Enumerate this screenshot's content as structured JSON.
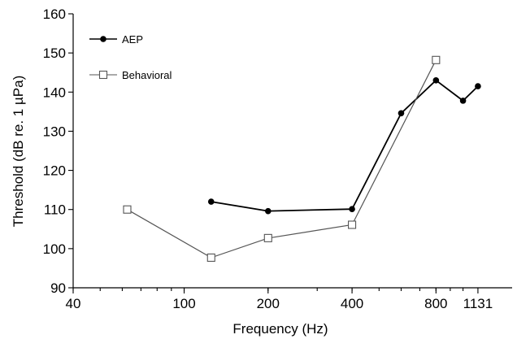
{
  "chart_data": {
    "type": "line",
    "xlabel": "Frequency (Hz)",
    "ylabel": "Threshold (dB re. 1 µPa)",
    "xscale": "log",
    "xlim": [
      40,
      1500
    ],
    "ylim": [
      90,
      160
    ],
    "yticks": [
      90,
      100,
      110,
      120,
      130,
      140,
      150,
      160
    ],
    "xtick_labels": [
      {
        "value": 40,
        "label": "40"
      },
      {
        "value": 100,
        "label": "100"
      },
      {
        "value": 200,
        "label": "200"
      },
      {
        "value": 400,
        "label": "400"
      },
      {
        "value": 800,
        "label": "800"
      },
      {
        "value": 1131,
        "label": "1131"
      }
    ],
    "legend_position": "top-left",
    "series": [
      {
        "name": "AEP",
        "marker": "filled-circle",
        "color": "#000000",
        "points": [
          {
            "x": 125,
            "y": 112
          },
          {
            "x": 200,
            "y": 109.6
          },
          {
            "x": 400,
            "y": 110.1
          },
          {
            "x": 600,
            "y": 134.6
          },
          {
            "x": 800,
            "y": 143
          },
          {
            "x": 1000,
            "y": 137.8
          },
          {
            "x": 1131,
            "y": 141.5
          }
        ]
      },
      {
        "name": "Behavioral",
        "marker": "open-square",
        "color": "#555555",
        "points": [
          {
            "x": 62.5,
            "y": 110
          },
          {
            "x": 125,
            "y": 97.7
          },
          {
            "x": 200,
            "y": 102.7
          },
          {
            "x": 400,
            "y": 106.1
          },
          {
            "x": 800,
            "y": 148.2
          }
        ]
      }
    ]
  }
}
